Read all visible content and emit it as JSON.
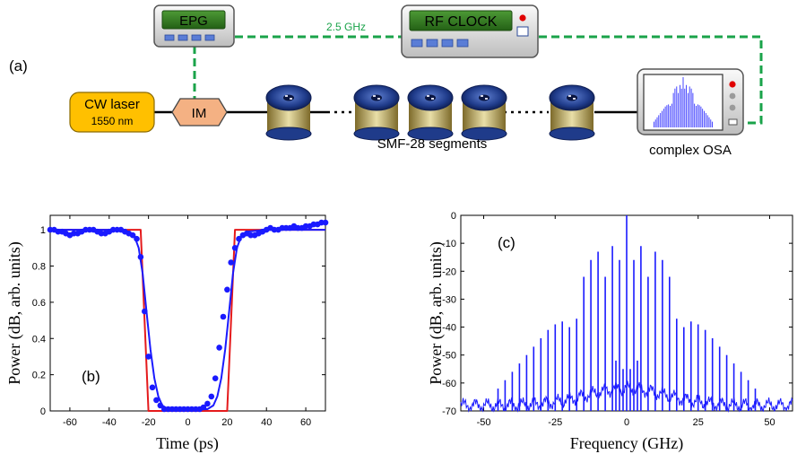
{
  "panel_a": {
    "label": "(a)",
    "cw_laser": {
      "line1": "CW laser",
      "line2": "1550 nm"
    },
    "modulator": "IM",
    "epg": "EPG",
    "rf_clock": "RF CLOCK",
    "clock_freq": "2.5 GHz",
    "fiber_label": "SMF-28 segments",
    "osa_label": "complex OSA",
    "colors": {
      "laser_fill": "#ffc000",
      "im_fill": "#f4b183",
      "link": "#1aa34a",
      "fiber": "#1f3b8a",
      "screen": "#2d7a1f"
    }
  },
  "chart_data": [
    {
      "type": "line",
      "panel_label": "(b)",
      "xlabel": "Time (ps)",
      "ylabel": "Power (dB, arb. units)",
      "xlim": [
        -70,
        70
      ],
      "ylim": [
        0,
        1.08
      ],
      "xticks": [
        -60,
        -40,
        -20,
        0,
        20,
        40,
        60
      ],
      "yticks": [
        0,
        0.2,
        0.4,
        0.6,
        0.8,
        1
      ],
      "ytick_labels": [
        "0",
        "0.2",
        "0.4",
        "0.6",
        "0.8",
        "1"
      ],
      "series": [
        {
          "kind": "ideal",
          "color": "#e41a1c",
          "x": [
            -70,
            -24,
            -20,
            20,
            24,
            70
          ],
          "y": [
            1,
            1,
            0,
            0,
            1,
            1
          ]
        },
        {
          "kind": "fit",
          "color": "#1a1aff",
          "x": [
            -70,
            -40,
            -30,
            -27,
            -25,
            -23,
            -21,
            -19,
            -17,
            -15,
            -13,
            -10,
            0,
            10,
            13,
            15,
            17,
            19,
            21,
            23,
            25,
            27,
            30,
            40,
            70
          ],
          "y": [
            1,
            1,
            0.99,
            0.96,
            0.9,
            0.76,
            0.55,
            0.34,
            0.18,
            0.08,
            0.03,
            0.01,
            0.01,
            0.01,
            0.03,
            0.08,
            0.18,
            0.34,
            0.55,
            0.76,
            0.9,
            0.96,
            0.99,
            1,
            1
          ]
        },
        {
          "kind": "measured",
          "color": "#1a1aff",
          "x": [
            -70,
            -68,
            -66,
            -64,
            -62,
            -60,
            -58,
            -56,
            -54,
            -52,
            -50,
            -48,
            -46,
            -44,
            -42,
            -40,
            -38,
            -36,
            -34,
            -32,
            -30,
            -28,
            -26,
            -24,
            -22,
            -20,
            -18,
            -16,
            -14,
            -12,
            -10,
            -8,
            -6,
            -4,
            -2,
            0,
            2,
            4,
            6,
            8,
            10,
            12,
            14,
            16,
            18,
            20,
            22,
            24,
            26,
            28,
            30,
            32,
            34,
            36,
            38,
            40,
            42,
            44,
            46,
            48,
            50,
            52,
            54,
            56,
            58,
            60,
            62,
            64,
            66,
            68,
            70
          ],
          "y": [
            1.0,
            1.0,
            0.99,
            0.99,
            0.98,
            0.97,
            0.98,
            0.98,
            0.99,
            1.0,
            1.0,
            1.0,
            0.99,
            0.98,
            0.98,
            0.99,
            1.0,
            1.0,
            1.0,
            0.99,
            0.98,
            0.97,
            0.95,
            0.85,
            0.55,
            0.3,
            0.13,
            0.06,
            0.03,
            0.01,
            0.01,
            0.01,
            0.01,
            0.01,
            0.01,
            0.01,
            0.01,
            0.01,
            0.01,
            0.02,
            0.04,
            0.08,
            0.18,
            0.35,
            0.52,
            0.67,
            0.82,
            0.9,
            0.95,
            0.97,
            0.98,
            0.97,
            0.97,
            0.98,
            0.99,
            1.0,
            1.01,
            1.0,
            1.0,
            1.01,
            1.01,
            1.01,
            1.02,
            1.01,
            1.01,
            1.02,
            1.02,
            1.03,
            1.03,
            1.04,
            1.04
          ]
        }
      ]
    },
    {
      "type": "line",
      "panel_label": "(c)",
      "xlabel": "Frequency (GHz)",
      "ylabel": "Power (dB, arb. units)",
      "xlim": [
        -58,
        58
      ],
      "ylim": [
        -70,
        0
      ],
      "xticks": [
        -50,
        -25,
        0,
        25,
        50
      ],
      "yticks": [
        -70,
        -60,
        -50,
        -40,
        -30,
        -20,
        -10,
        0
      ],
      "series": [
        {
          "kind": "spectrum_lines",
          "color": "#1a1aff",
          "baseline_db": -68,
          "x": [
            -45,
            -42.5,
            -40,
            -37.5,
            -35,
            -32.5,
            -30,
            -27.5,
            -25,
            -22.5,
            -20,
            -17.5,
            -15,
            -12.5,
            -10,
            -7.5,
            -5,
            -2.5,
            0,
            2.5,
            5,
            7.5,
            10,
            12.5,
            15,
            17.5,
            20,
            22.5,
            25,
            27.5,
            30,
            32.5,
            35,
            37.5,
            40,
            42.5,
            45
          ],
          "y": [
            -62,
            -59,
            -56,
            -53,
            -50,
            -47,
            -44,
            -41,
            -39,
            -38,
            -40,
            -37,
            -22,
            -16,
            -13,
            -22,
            -11,
            -16,
            0,
            -16,
            -11,
            -22,
            -13,
            -16,
            -22,
            -37,
            -40,
            -38,
            -39,
            -41,
            -44,
            -47,
            -50,
            -53,
            -56,
            -59,
            -62
          ]
        },
        {
          "kind": "spectrum_lines_minor",
          "color": "#1a1aff",
          "x": [
            -3.75,
            -1.25,
            1.25,
            3.75
          ],
          "y": [
            -52,
            -55,
            -55,
            -52
          ]
        }
      ]
    }
  ]
}
